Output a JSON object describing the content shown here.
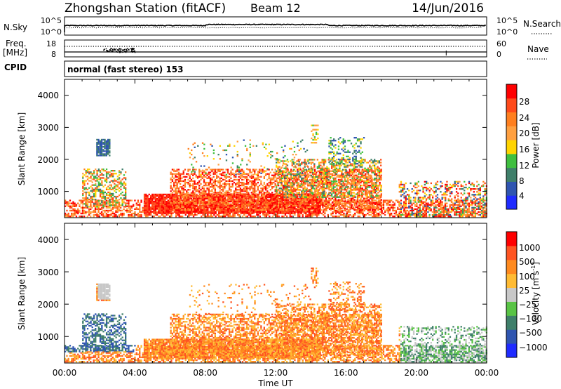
{
  "header": {
    "title": "Zhongshan Station (fitACF)",
    "beam": "Beam 12",
    "date": "14/Jun/2016"
  },
  "strip_panels": {
    "nsky_label": "N.Sky",
    "nsky_ticks": [
      "10^5",
      "10^0"
    ],
    "nsearch_label": "N.Search",
    "nsearch_ticks": [
      "10^5",
      "10^0"
    ],
    "freq_label_line1": "Freq.",
    "freq_label_line2": "[MHz]",
    "freq_ticks": [
      "18",
      "8"
    ],
    "nave_label": "Nave",
    "nave_ticks": [
      "60",
      "0"
    ],
    "cpid_label": "CPID",
    "cpid_value": "normal (fast stereo) 153"
  },
  "colors": {
    "power_scale": [
      "#1f2bff",
      "#2f55b0",
      "#3f7f6a",
      "#3fbf3f",
      "#ffd400",
      "#ffa040",
      "#ff7f1f",
      "#ff4a1a",
      "#ff0000"
    ],
    "velocity_scale": [
      "#ff0000",
      "#ff5522",
      "#ff8a1f",
      "#ffbb33",
      "#c8c8c8",
      "#59c445",
      "#3f7f6a",
      "#2f55b0",
      "#1f2bff"
    ],
    "axis": "#000000"
  },
  "chart_data": [
    {
      "type": "heatmap",
      "panel": "power",
      "ylabel": "Slant Range [km]",
      "yticks": [
        "4000",
        "3000",
        "2000",
        "1000"
      ],
      "ylim": [
        180,
        4500
      ],
      "xticks": [
        "00:00",
        "04:00",
        "08:00",
        "12:00",
        "16:00",
        "20:00",
        "00:00"
      ],
      "xlim_hours": [
        0,
        24
      ],
      "colorbar": {
        "label": "Power [dB]",
        "ticks": [
          "28",
          "24",
          "20",
          "16",
          "12",
          "8",
          "4"
        ],
        "range": [
          0,
          30
        ]
      }
    },
    {
      "type": "heatmap",
      "panel": "velocity",
      "ylabel": "Slant Range [km]",
      "yticks": [
        "4000",
        "3000",
        "2000",
        "1000"
      ],
      "ylim": [
        180,
        4500
      ],
      "xticks": [
        "00:00",
        "04:00",
        "08:00",
        "12:00",
        "16:00",
        "20:00",
        "00:00"
      ],
      "xlim_hours": [
        0,
        24
      ],
      "xlabel": "Time UT",
      "colorbar": {
        "label": "Velocity [m s",
        "label_sup": "-1",
        "label_close": "]",
        "ticks": [
          "1000",
          "500",
          "100",
          "25",
          "−25",
          "−100",
          "−500",
          "−1000"
        ]
      }
    }
  ]
}
